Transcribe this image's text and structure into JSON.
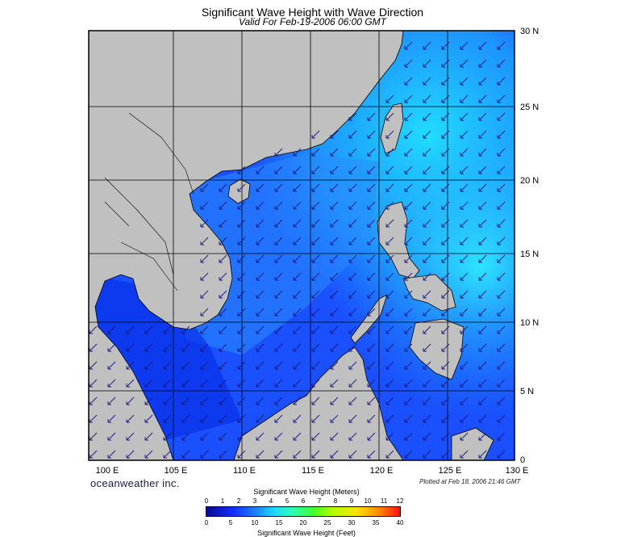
{
  "header": {
    "title": "Significant Wave Height with Wave Direction",
    "subtitle": "Valid For Feb-19-2006 06:00 GMT"
  },
  "map": {
    "lat_labels": [
      "30 N",
      "25 N",
      "20 N",
      "15 N",
      "10 N",
      "5 N",
      "0"
    ],
    "lon_labels": [
      "100 E",
      "105 E",
      "110 E",
      "115 E",
      "120 E",
      "125 E",
      "130 E"
    ],
    "land_color": "#c0c0c0",
    "sea_base_color": "#1a55ff",
    "arrow_color": "#1a1a80",
    "wave_direction": "southwest"
  },
  "footer": {
    "brand": "oceanweather inc.",
    "plotted": "Plotted at Feb 18, 2006 21:46 GMT"
  },
  "colorbar": {
    "title_meters": "Significant Wave Height (Meters)",
    "title_feet": "Significant Wave Height (Feet)",
    "meter_ticks": [
      "0",
      "1",
      "2",
      "3",
      "4",
      "5",
      "6",
      "7",
      "8",
      "9",
      "10",
      "11",
      "12"
    ],
    "feet_ticks": [
      "0",
      "5",
      "10",
      "15",
      "20",
      "25",
      "30",
      "35",
      "40"
    ]
  }
}
